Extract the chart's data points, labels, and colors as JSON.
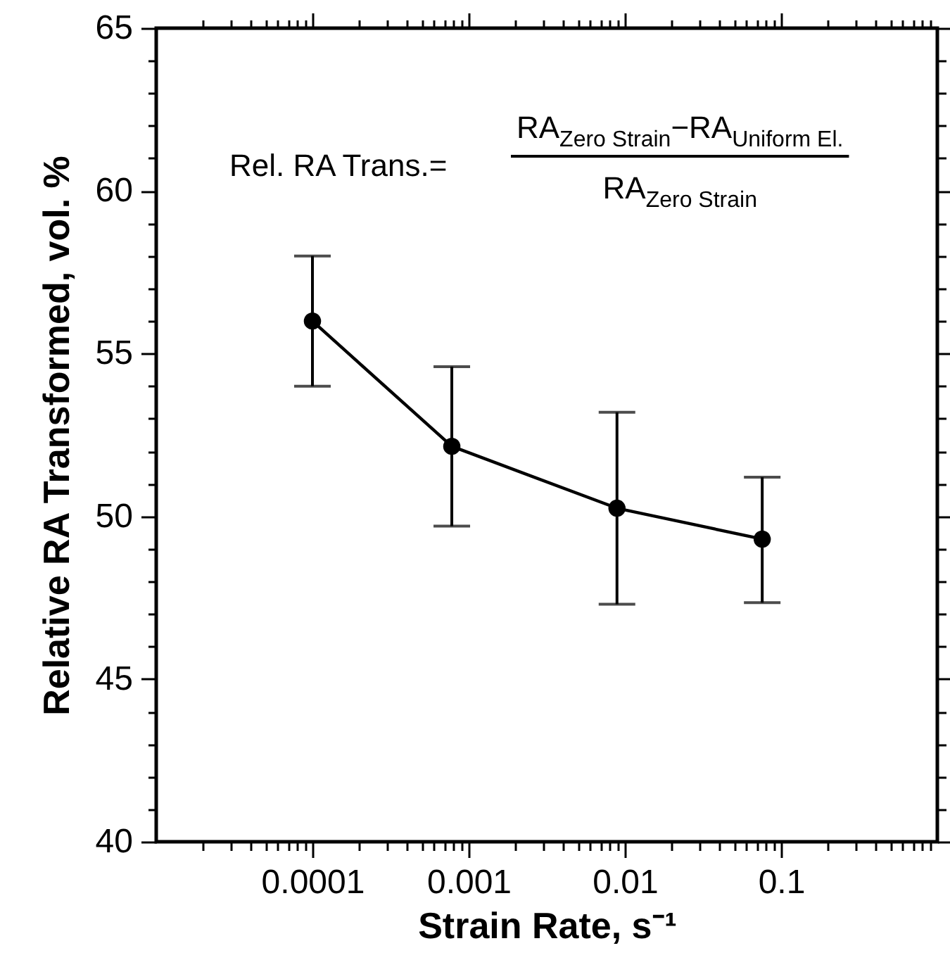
{
  "chart_data": {
    "type": "line",
    "xlabel": "Strain Rate, s⁻¹",
    "ylabel": "Relative RA Transformed, vol. %",
    "annotations": [
      "Rel. RA Trans.=",
      "RA$_{Zero Strain}$−RA$_{Uniform El.}$",
      "RA$_{Zero Strain}$"
    ],
    "x": [
      0.0001,
      0.00078,
      0.0089,
      0.0757
    ],
    "series": [
      {
        "color": "#000000",
        "values": [
          56,
          52.15,
          50.25,
          49.3
        ],
        "errors": [
          [
            54,
            58
          ],
          [
            49.7,
            54.6
          ],
          [
            47.3,
            53.2
          ],
          [
            47.35,
            51.2
          ]
        ]
      }
    ],
    "log": "x",
    "marker": "circle",
    "line_style": "solid",
    "xlim": [
      1e-05,
      1
    ],
    "ylim": [
      40,
      65
    ],
    "xticks": [
      {
        "value": 2e-05,
        "label": null
      },
      {
        "value": 3e-05,
        "label": null
      },
      {
        "value": 4e-05,
        "label": null
      },
      {
        "value": 5e-05,
        "label": null
      },
      {
        "value": 6e-05,
        "label": null
      },
      {
        "value": 7e-05,
        "label": null
      },
      {
        "value": 8e-05,
        "label": null
      },
      {
        "value": 9e-05,
        "label": null
      },
      0.0001,
      {
        "value": 0.0002,
        "label": null
      },
      {
        "value": 0.0003,
        "label": null
      },
      {
        "value": 0.0004,
        "label": null
      },
      {
        "value": 0.0005,
        "label": null
      },
      {
        "value": 0.0006,
        "label": null
      },
      {
        "value": 0.0007,
        "label": null
      },
      {
        "value": 0.0008,
        "label": null
      },
      {
        "value": 0.0009,
        "label": null
      },
      0.001,
      {
        "value": 0.002,
        "label": null
      },
      {
        "value": 0.003,
        "label": null
      },
      {
        "value": 0.004,
        "label": null
      },
      {
        "value": 0.005,
        "label": null
      },
      {
        "value": 0.006,
        "label": null
      },
      {
        "value": 0.007,
        "label": null
      },
      {
        "value": 0.008,
        "label": null
      },
      {
        "value": 0.009,
        "label": null
      },
      0.01,
      {
        "value": 0.02,
        "label": null
      },
      {
        "value": 0.03,
        "label": null
      },
      {
        "value": 0.04,
        "label": null
      },
      {
        "value": 0.05,
        "label": null
      },
      {
        "value": 0.06,
        "label": null
      },
      {
        "value": 0.07,
        "label": null
      },
      {
        "value": 0.08,
        "label": null
      },
      {
        "value": 0.09,
        "label": null
      },
      0.1,
      {
        "value": 0.2,
        "label": null
      },
      {
        "value": 0.3,
        "label": null
      },
      {
        "value": 0.4,
        "label": null
      },
      {
        "value": 0.5,
        "label": null
      },
      {
        "value": 0.6,
        "label": null
      },
      {
        "value": 0.7,
        "label": null
      },
      {
        "value": 0.8,
        "label": null
      },
      {
        "value": 0.9,
        "label": null
      }
    ],
    "yticks": [
      40,
      {
        "value": 41,
        "label": null
      },
      {
        "value": 42,
        "label": null
      },
      {
        "value": 43,
        "label": null
      },
      {
        "value": 44,
        "label": null
      },
      45,
      {
        "value": 46,
        "label": null
      },
      {
        "value": 47,
        "label": null
      },
      {
        "value": 48,
        "label": null
      },
      {
        "value": 49,
        "label": null
      },
      50,
      {
        "value": 51,
        "label": null
      },
      {
        "value": 52,
        "label": null
      },
      {
        "value": 53,
        "label": null
      },
      {
        "value": 54,
        "label": null
      },
      55,
      {
        "value": 56,
        "label": null
      },
      {
        "value": 57,
        "label": null
      },
      {
        "value": 58,
        "label": null
      },
      {
        "value": 59,
        "label": null
      },
      60,
      {
        "value": 61,
        "label": null
      },
      {
        "value": 62,
        "label": null
      },
      {
        "value": 63,
        "label": null
      },
      {
        "value": 64,
        "label": null
      },
      65
    ]
  }
}
